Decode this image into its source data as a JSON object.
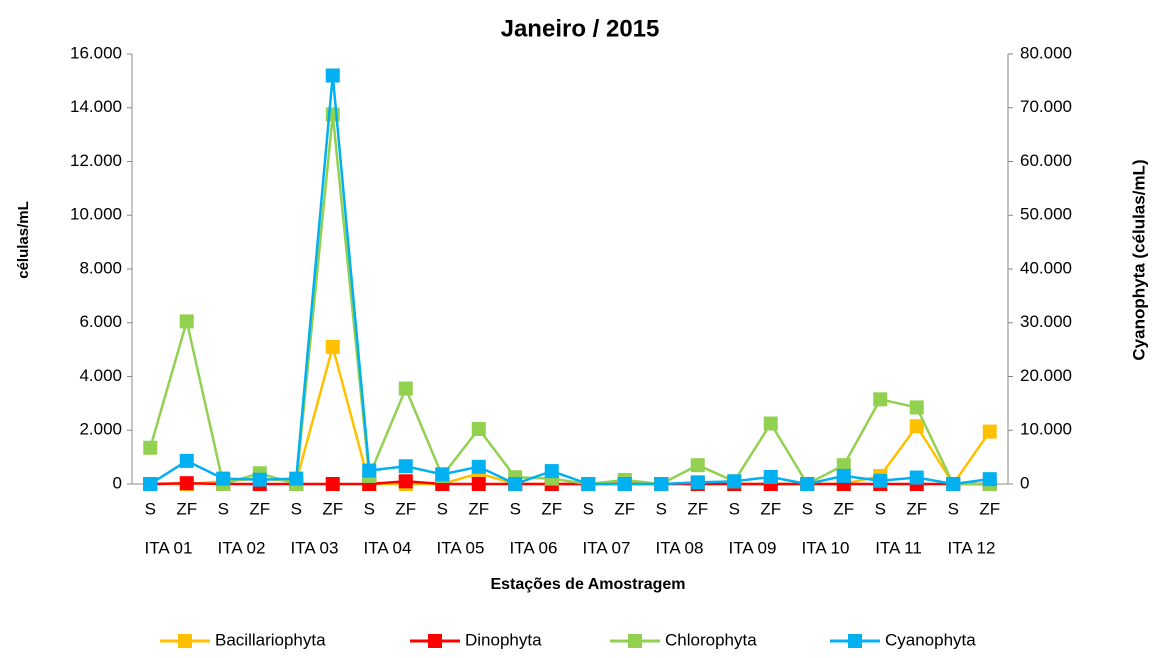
{
  "chart_data": {
    "type": "line",
    "title": "Janeiro / 2015",
    "y_label": "células/mL",
    "y2_label": "Cyanophyta (células/mL)",
    "x_label": "Estações de Amostragem",
    "categories": [
      "S",
      "ZF",
      "S",
      "ZF",
      "S",
      "ZF",
      "S",
      "ZF",
      "S",
      "ZF",
      "S",
      "ZF",
      "S",
      "ZF",
      "S",
      "ZF",
      "S",
      "ZF",
      "S",
      "ZF",
      "S",
      "ZF",
      "S",
      "ZF"
    ],
    "groups": [
      "ITA 01",
      "ITA 02",
      "ITA 03",
      "ITA 04",
      "ITA 05",
      "ITA 06",
      "ITA 07",
      "ITA 08",
      "ITA 09",
      "ITA 10",
      "ITA 11",
      "ITA 12"
    ],
    "ylim": [
      0,
      16000
    ],
    "yticks": [
      0,
      {
        "value": 2000,
        "label": "2.000"
      },
      {
        "value": 4000,
        "label": "4.000"
      },
      {
        "value": 6000,
        "label": "6.000"
      },
      {
        "value": 8000,
        "label": "8.000"
      },
      {
        "value": 10000,
        "label": "10.000"
      },
      {
        "value": 12000,
        "label": "12.000"
      },
      {
        "value": 14000,
        "label": "14.000"
      },
      {
        "value": 16000,
        "label": "16.000"
      }
    ],
    "y2lim": [
      0,
      80000
    ],
    "y2ticks": [
      0,
      {
        "value": 10000,
        "label": "10.000"
      },
      {
        "value": 20000,
        "label": "20.000"
      },
      {
        "value": 30000,
        "label": "30.000"
      },
      {
        "value": 40000,
        "label": "40.000"
      },
      {
        "value": 50000,
        "label": "50.000"
      },
      {
        "value": 60000,
        "label": "60.000"
      },
      {
        "value": 70000,
        "label": "70.000"
      },
      {
        "value": 80000,
        "label": "80.000"
      }
    ],
    "grid": false,
    "legend": "bottom",
    "series": [
      {
        "name": "Bacillariophyta",
        "color": "#ffc000",
        "values": [
          0,
          0,
          100,
          200,
          100,
          5100,
          0,
          0,
          0,
          400,
          0,
          0,
          0,
          100,
          0,
          0,
          0,
          0,
          0,
          0,
          300,
          2150,
          0,
          1950
        ]
      },
      {
        "name": "Dinophyta",
        "color": "#ff0000",
        "values": [
          0,
          30,
          0,
          0,
          0,
          0,
          0,
          100,
          0,
          0,
          0,
          0,
          0,
          0,
          0,
          0,
          0,
          0,
          0,
          0,
          0,
          0,
          0,
          0
        ]
      },
      {
        "name": "Chlorophyta",
        "color": "#92d050",
        "values": [
          1350,
          6050,
          0,
          400,
          0,
          13750,
          300,
          3550,
          300,
          2050,
          250,
          200,
          0,
          150,
          0,
          700,
          100,
          2250,
          0,
          700,
          3150,
          2850,
          0,
          0
        ]
      },
      {
        "name": "Cyanophyta",
        "color": "#00b0f0",
        "axis": "y2",
        "values": [
          0,
          4300,
          1000,
          800,
          1000,
          76000,
          2500,
          3300,
          1800,
          3200,
          0,
          2400,
          0,
          0,
          0,
          300,
          500,
          1300,
          0,
          1500,
          600,
          1200,
          0,
          900
        ]
      }
    ]
  }
}
